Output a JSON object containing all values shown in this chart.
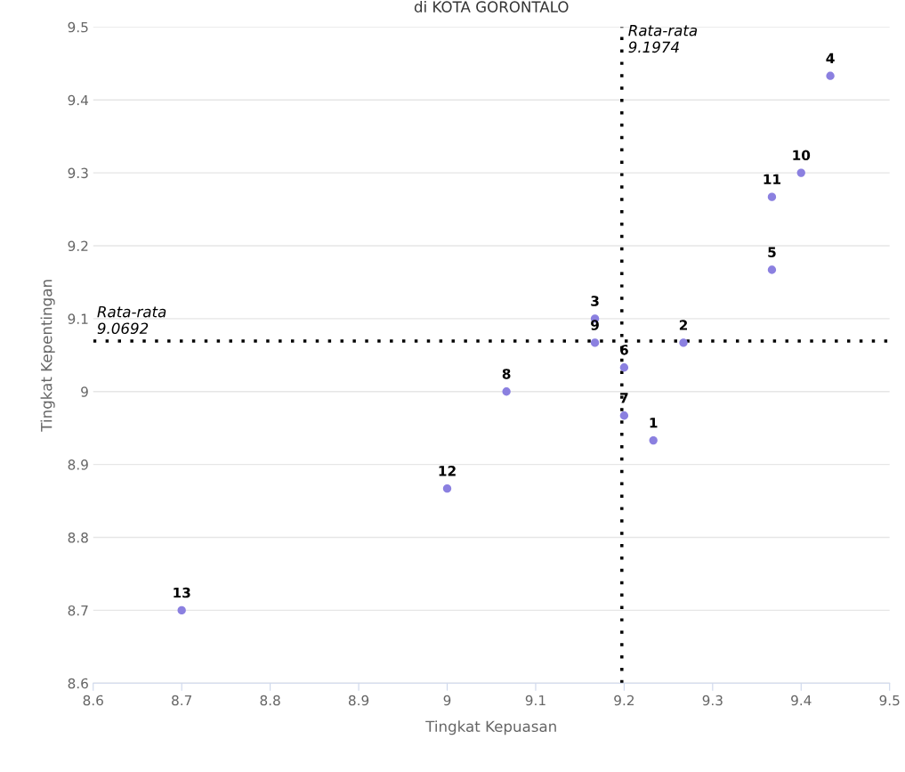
{
  "chart_data": {
    "type": "scatter",
    "title": "di KOTA GORONTALO",
    "xlabel": "Tingkat Kepuasan",
    "ylabel": "Tingkat Kepentingan",
    "x": [
      9.233,
      9.267,
      9.167,
      9.433,
      9.367,
      9.2,
      9.2,
      9.067,
      9.167,
      9.4,
      9.367,
      9.0,
      8.7
    ],
    "series": [
      {
        "color": "#8b80e0",
        "values": [
          8.933,
          9.067,
          9.1,
          9.433,
          9.167,
          9.033,
          8.967,
          9.0,
          9.067,
          9.3,
          9.267,
          8.867,
          8.7
        ]
      }
    ],
    "annotations": [
      {
        "text": "1",
        "x": 9.233,
        "y": 8.933
      },
      {
        "text": "2",
        "x": 9.267,
        "y": 9.067
      },
      {
        "text": "3",
        "x": 9.167,
        "y": 9.1
      },
      {
        "text": "4",
        "x": 9.433,
        "y": 9.433
      },
      {
        "text": "5",
        "x": 9.367,
        "y": 9.167
      },
      {
        "text": "6",
        "x": 9.2,
        "y": 9.033
      },
      {
        "text": "7",
        "x": 9.2,
        "y": 8.967
      },
      {
        "text": "8",
        "x": 9.067,
        "y": 9.0
      },
      {
        "text": "9",
        "x": 9.167,
        "y": 9.067
      },
      {
        "text": "10",
        "x": 9.4,
        "y": 9.3
      },
      {
        "text": "11",
        "x": 9.367,
        "y": 9.267
      },
      {
        "text": "12",
        "x": 9.0,
        "y": 8.867
      },
      {
        "text": "13",
        "x": 8.7,
        "y": 8.7
      }
    ],
    "ref_lines": [
      {
        "axis": "x",
        "value": 9.1974,
        "label": "Rata-rata\n9.1974",
        "color": "#000000",
        "line_style": "dotted"
      },
      {
        "axis": "y",
        "value": 9.0692,
        "label": "Rata-rata\n9.0692",
        "color": "#000000",
        "line_style": "dotted"
      }
    ],
    "xlim": [
      8.6,
      9.5
    ],
    "xticks": [
      8.6,
      8.7,
      8.8,
      8.9,
      {
        "value": 9.0,
        "label": "9"
      },
      9.1,
      9.2,
      9.3,
      9.4,
      9.5
    ],
    "ylim": [
      8.6,
      9.5
    ],
    "yticks": [
      8.6,
      8.7,
      8.8,
      8.9,
      {
        "value": 9.0,
        "label": "9"
      },
      9.1,
      9.2,
      9.3,
      9.4,
      9.5
    ],
    "grid": "y",
    "marker": "circle"
  }
}
